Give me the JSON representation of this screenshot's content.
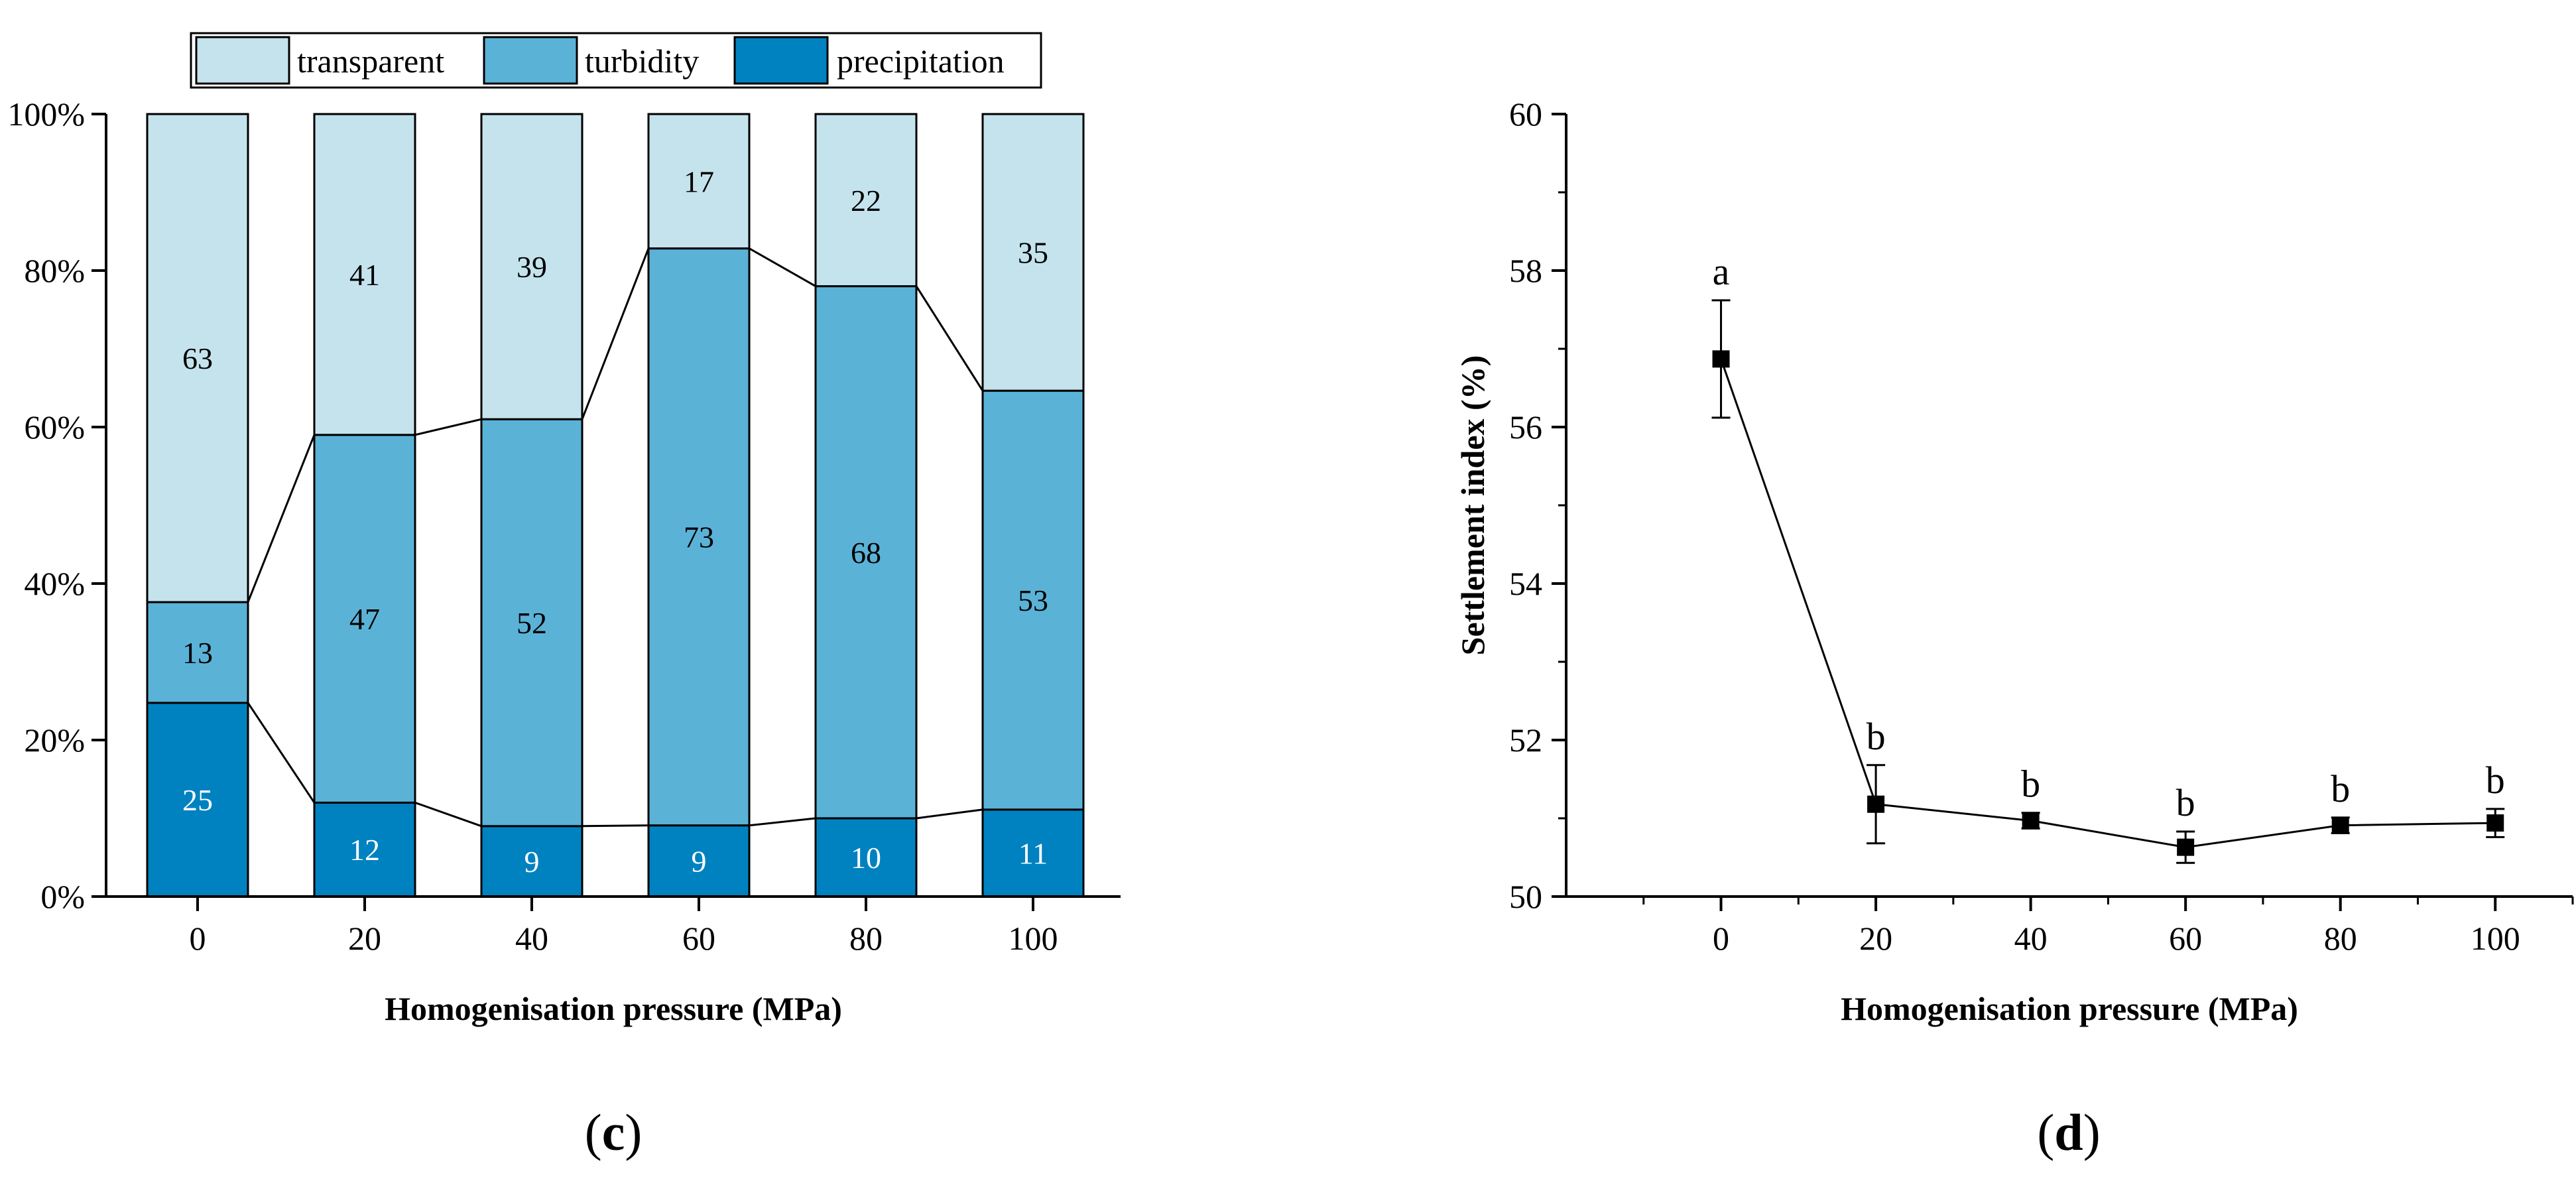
{
  "colors": {
    "transparent": "#c5e3ed",
    "turbidity": "#5bb2d7",
    "precipitation": "#0182c0",
    "outline": "#000000",
    "background": "#ffffff"
  },
  "chart_data": [
    {
      "type": "bar",
      "subtype": "stacked-100-percent",
      "panel_label": "c",
      "categories": [
        "0",
        "20",
        "40",
        "60",
        "80",
        "100"
      ],
      "series": [
        {
          "name": "precipitation",
          "values": [
            25,
            12,
            9,
            9,
            10,
            11
          ]
        },
        {
          "name": "turbidity",
          "values": [
            13,
            47,
            52,
            73,
            68,
            53
          ]
        },
        {
          "name": "transparent",
          "values": [
            63,
            41,
            39,
            17,
            22,
            35
          ]
        }
      ],
      "legend": {
        "placement": "top",
        "order": [
          "transparent",
          "turbidity",
          "precipitation"
        ]
      },
      "xlabel": "Homogenisation pressure (MPa)",
      "ylabel": "",
      "ylim": [
        0,
        100
      ],
      "yticks": [
        "0%",
        "20%",
        "40%",
        "60%",
        "80%",
        "100%"
      ],
      "connector_lines": true
    },
    {
      "type": "line",
      "panel_label": "d",
      "x": [
        0,
        20,
        40,
        60,
        80,
        100
      ],
      "xticks": [
        "0",
        "20",
        "40",
        "60",
        "80",
        "100"
      ],
      "y": [
        56.87,
        51.18,
        50.97,
        50.63,
        50.91,
        50.94
      ],
      "error": [
        0.75,
        0.5,
        0.1,
        0.2,
        0.1,
        0.18
      ],
      "significance": [
        "a",
        "b",
        "b",
        "b",
        "b",
        "b"
      ],
      "xlabel": "Homogenisation pressure (MPa)",
      "ylabel": "Settlement index (%)",
      "xlim": [
        -20,
        110
      ],
      "ylim": [
        50,
        60
      ],
      "yticks": [
        "50",
        "52",
        "54",
        "56",
        "58",
        "60"
      ],
      "marker": "square"
    }
  ]
}
